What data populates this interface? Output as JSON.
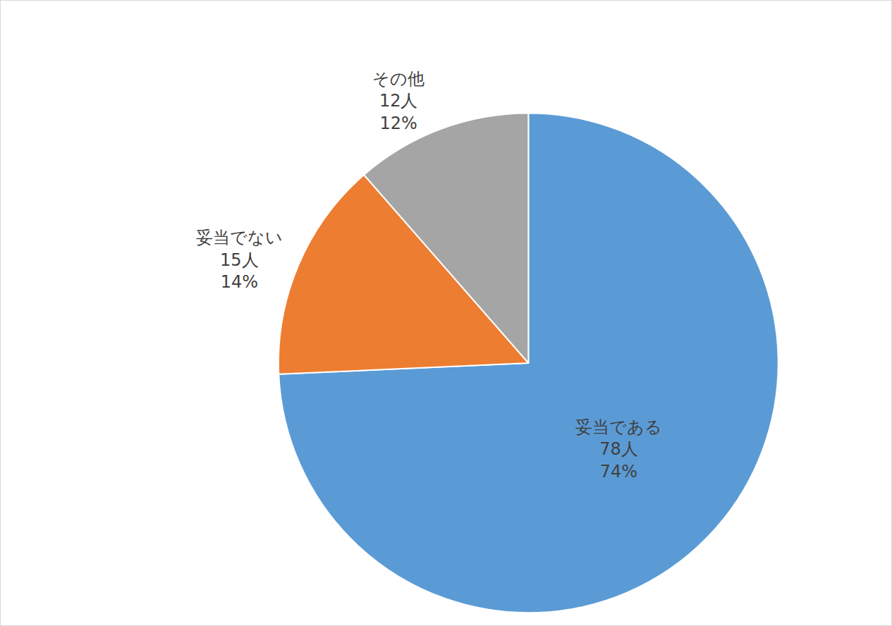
{
  "chart_data": {
    "type": "pie",
    "categories": [
      "妥当である",
      "妥当でない",
      "その他"
    ],
    "values": [
      78,
      15,
      12
    ],
    "value_labels": [
      "78人",
      "15人",
      "12人"
    ],
    "percentages": [
      74,
      14,
      12
    ],
    "percent_labels": [
      "74%",
      "14%",
      "12%"
    ],
    "colors": [
      "#5b9bd5",
      "#ed7d31",
      "#a5a5a5"
    ],
    "data_labels": true
  }
}
